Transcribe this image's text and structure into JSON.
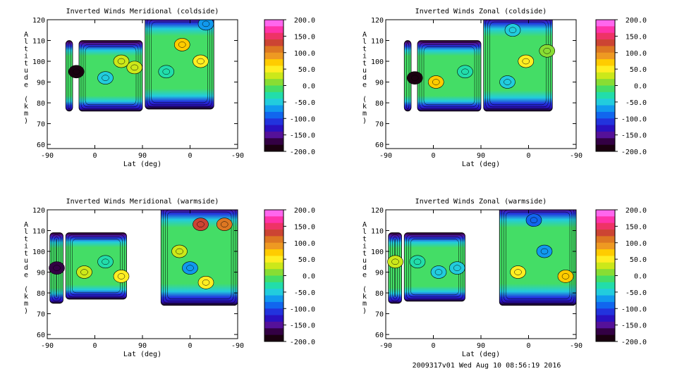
{
  "footer_text": "2009317v01 Wed Aug 10 08:56:19 2016",
  "colorbar": {
    "ticks": [
      "200.0",
      "150.0",
      "100.0",
      "50.0",
      "0.0",
      "-50.0",
      "-100.0",
      "-150.0",
      "-200.0"
    ],
    "colors": [
      "#ff66ee",
      "#ff33aa",
      "#ee3366",
      "#cc4433",
      "#dd7722",
      "#ee9922",
      "#ffcc00",
      "#ffee22",
      "#cce81a",
      "#88dd33",
      "#44dd66",
      "#22ddaa",
      "#22ccdd",
      "#1199ee",
      "#1166ee",
      "#2233dd",
      "#2a10c0",
      "#551199",
      "#330044",
      "#1a0010"
    ]
  },
  "chart_data": [
    {
      "type": "heatmap",
      "title": "Inverted Winds Meridional (coldside)",
      "xlabel": "Lat (deg)",
      "ylabel": "Altitude (km)",
      "xticks": [
        "-90",
        "0",
        "90",
        "0",
        "-90"
      ],
      "yticks": [
        "60",
        "70",
        "80",
        "90",
        "100",
        "110",
        "120"
      ],
      "xlim": [
        0,
        360
      ],
      "ylim": [
        58,
        120
      ],
      "zlim": [
        -200,
        200
      ],
      "segments": [
        {
          "x_start": 35,
          "x_end": 48,
          "alt_bottom": 76,
          "alt_top": 110
        },
        {
          "x_start": 60,
          "x_end": 180,
          "alt_bottom": 76,
          "alt_top": 110
        },
        {
          "x_start": 185,
          "x_end": 315,
          "alt_bottom": 77,
          "alt_top": 122
        }
      ],
      "cells": [
        {
          "x": 55,
          "alt": 95,
          "value": -180
        },
        {
          "x": 110,
          "alt": 92,
          "value": -55
        },
        {
          "x": 140,
          "alt": 100,
          "value": 40
        },
        {
          "x": 165,
          "alt": 97,
          "value": 25
        },
        {
          "x": 225,
          "alt": 95,
          "value": -20
        },
        {
          "x": 255,
          "alt": 108,
          "value": 80
        },
        {
          "x": 290,
          "alt": 100,
          "value": 45
        },
        {
          "x": 300,
          "alt": 118,
          "value": -60
        }
      ]
    },
    {
      "type": "heatmap",
      "title": "Inverted Winds Zonal (coldside)",
      "xlabel": "Lat (deg)",
      "ylabel": "Altitude (km)",
      "xticks": [
        "-90",
        "0",
        "90",
        "0",
        "-90"
      ],
      "yticks": [
        "60",
        "70",
        "80",
        "90",
        "100",
        "110",
        "120"
      ],
      "xlim": [
        0,
        360
      ],
      "ylim": [
        58,
        120
      ],
      "zlim": [
        -200,
        200
      ],
      "segments": [
        {
          "x_start": 35,
          "x_end": 48,
          "alt_bottom": 76,
          "alt_top": 110
        },
        {
          "x_start": 60,
          "x_end": 180,
          "alt_bottom": 76,
          "alt_top": 110
        },
        {
          "x_start": 185,
          "x_end": 315,
          "alt_bottom": 76,
          "alt_top": 122
        }
      ],
      "cells": [
        {
          "x": 55,
          "alt": 92,
          "value": -190
        },
        {
          "x": 95,
          "alt": 90,
          "value": 70
        },
        {
          "x": 150,
          "alt": 95,
          "value": -20
        },
        {
          "x": 230,
          "alt": 90,
          "value": -50
        },
        {
          "x": 265,
          "alt": 100,
          "value": 60
        },
        {
          "x": 305,
          "alt": 105,
          "value": 20
        },
        {
          "x": 240,
          "alt": 115,
          "value": -45
        }
      ]
    },
    {
      "type": "heatmap",
      "title": "Inverted Winds Meridional (warmside)",
      "xlabel": "Lat (deg)",
      "ylabel": "Altitude (km)",
      "xticks": [
        "-90",
        "0",
        "90",
        "0",
        "-90"
      ],
      "yticks": [
        "60",
        "70",
        "80",
        "90",
        "100",
        "110",
        "120"
      ],
      "xlim": [
        0,
        360
      ],
      "ylim": [
        58,
        120
      ],
      "zlim": [
        -200,
        200
      ],
      "segments": [
        {
          "x_start": 5,
          "x_end": 30,
          "alt_bottom": 75,
          "alt_top": 109
        },
        {
          "x_start": 35,
          "x_end": 150,
          "alt_bottom": 77,
          "alt_top": 109
        },
        {
          "x_start": 215,
          "x_end": 360,
          "alt_bottom": 74,
          "alt_top": 122
        }
      ],
      "cells": [
        {
          "x": 18,
          "alt": 92,
          "value": -160
        },
        {
          "x": 70,
          "alt": 90,
          "value": 40
        },
        {
          "x": 110,
          "alt": 95,
          "value": -20
        },
        {
          "x": 140,
          "alt": 88,
          "value": 60
        },
        {
          "x": 250,
          "alt": 100,
          "value": 40
        },
        {
          "x": 290,
          "alt": 113,
          "value": 120
        },
        {
          "x": 335,
          "alt": 113,
          "value": 110
        },
        {
          "x": 300,
          "alt": 85,
          "value": 50
        },
        {
          "x": 270,
          "alt": 92,
          "value": -60
        }
      ]
    },
    {
      "type": "heatmap",
      "title": "Inverted Winds Zonal (warmside)",
      "xlabel": "Lat (deg)",
      "ylabel": "Altitude (km)",
      "xticks": [
        "-90",
        "0",
        "90",
        "0",
        "-90"
      ],
      "yticks": [
        "60",
        "70",
        "80",
        "90",
        "100",
        "110",
        "120"
      ],
      "xlim": [
        0,
        360
      ],
      "ylim": [
        58,
        120
      ],
      "zlim": [
        -200,
        200
      ],
      "segments": [
        {
          "x_start": 5,
          "x_end": 30,
          "alt_bottom": 75,
          "alt_top": 109
        },
        {
          "x_start": 35,
          "x_end": 150,
          "alt_bottom": 76,
          "alt_top": 109
        },
        {
          "x_start": 215,
          "x_end": 360,
          "alt_bottom": 74,
          "alt_top": 122
        }
      ],
      "cells": [
        {
          "x": 18,
          "alt": 95,
          "value": 40
        },
        {
          "x": 60,
          "alt": 95,
          "value": -20
        },
        {
          "x": 100,
          "alt": 90,
          "value": -55
        },
        {
          "x": 135,
          "alt": 92,
          "value": -50
        },
        {
          "x": 250,
          "alt": 90,
          "value": 60
        },
        {
          "x": 300,
          "alt": 100,
          "value": -60
        },
        {
          "x": 340,
          "alt": 88,
          "value": 80
        },
        {
          "x": 280,
          "alt": 115,
          "value": -90
        }
      ]
    }
  ]
}
